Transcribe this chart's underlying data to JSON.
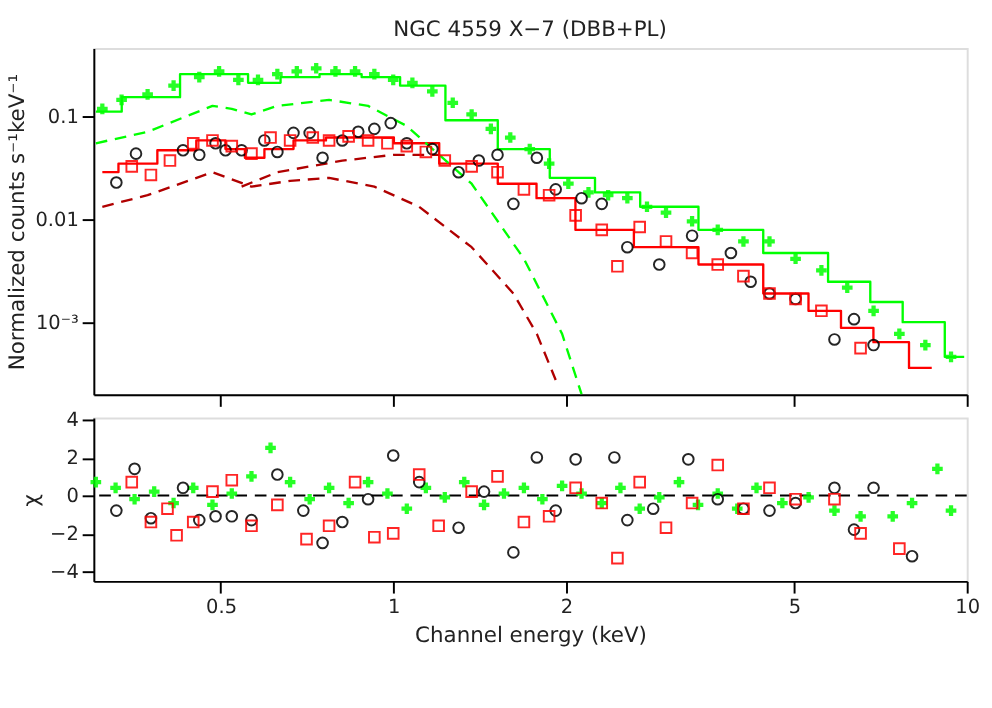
{
  "chart_data": [
    {
      "type": "scatter",
      "title": "NGC 4559 X−7 (DBB+PL)",
      "ylabel": "Normalized counts s⁻¹keV⁻¹",
      "log": "xy",
      "grid": false,
      "tick_labels": "y",
      "xlim": [
        0.3,
        10
      ],
      "xticks": [
        0.5,
        1,
        2,
        5,
        10
      ],
      "ylim": [
        0.0002,
        0.46
      ],
      "yticks": [
        0.1,
        0.01,
        {
          "value": 0.001,
          "label": "10⁻³"
        }
      ],
      "series": [
        {
          "type": "step",
          "color": "#00ff00",
          "x": [
            0.303,
            0.373,
            0.484,
            0.523,
            0.596,
            0.679,
            0.815,
            0.952,
            1.11,
            1.37,
            1.69,
            2.08,
            2.43,
            2.99,
            3.88,
            5.03,
            6.53,
            7.06,
            8.47,
            9.9
          ],
          "values": [
            0.111,
            0.153,
            0.256,
            0.256,
            0.211,
            0.24,
            0.256,
            0.24,
            0.198,
            0.0914,
            0.048,
            0.0252,
            0.0182,
            0.0132,
            0.00787,
            0.0047,
            0.00247,
            0.00157,
            0.001,
            0.00046
          ]
        },
        {
          "type": "step",
          "color": "#ff0000",
          "x": [
            0.311,
            0.354,
            0.425,
            0.484,
            0.537,
            0.566,
            0.628,
            0.715,
            0.815,
            0.952,
            1.056,
            1.37,
            1.69,
            1.87,
            2.31,
            2.99,
            3.88,
            5.03,
            5.58,
            6.53,
            7.24,
            8.69
          ],
          "values": [
            0.0286,
            0.0347,
            0.0467,
            0.0582,
            0.048,
            0.0395,
            0.048,
            0.0582,
            0.0621,
            0.0621,
            0.0546,
            0.0347,
            0.0221,
            0.016,
            0.00787,
            0.00535,
            0.00363,
            0.0019,
            0.00129,
            0.00088,
            0.00064,
            0.00036
          ]
        },
        {
          "type": "line",
          "line_style": "dashed",
          "color": "#00ff00",
          "x": [
            0.303,
            0.373,
            0.484,
            0.523,
            0.566,
            0.628,
            0.773,
            0.904,
            1.056,
            1.37,
            1.69,
            1.97,
            2.13
          ],
          "values": [
            0.0546,
            0.0706,
            0.126,
            0.118,
            0.104,
            0.126,
            0.144,
            0.126,
            0.0803,
            0.0221,
            0.00413,
            0.00077,
            0.0002
          ]
        },
        {
          "type": "line",
          "line_style": "dashed",
          "color": "#b00000",
          "x": [
            0.311,
            0.373,
            0.484,
            0.566,
            0.661,
            0.773,
            0.927,
            1.11,
            1.37,
            1.62,
            1.78,
            1.92
          ],
          "values": [
            0.0132,
            0.0171,
            0.0286,
            0.0207,
            0.0236,
            0.0252,
            0.0207,
            0.0132,
            0.00535,
            0.0019,
            0.00077,
            0.000275
          ]
        },
        {
          "type": "line",
          "line_style": "dashed",
          "color": "#b00000",
          "x": [
            0.544,
            0.628,
            0.815,
            1.0,
            1.2
          ],
          "values": [
            0.0207,
            0.0286,
            0.037,
            0.0422,
            0.0422
          ]
        },
        {
          "type": "scatter",
          "marker": "cross",
          "color": "#00ff00",
          "x": [
            0.311,
            0.336,
            0.373,
            0.414,
            0.459,
            0.497,
            0.537,
            0.581,
            0.628,
            0.679,
            0.734,
            0.793,
            0.858,
            0.927,
            1.0,
            1.08,
            1.17,
            1.27,
            1.37,
            1.48,
            1.6,
            1.73,
            1.87,
            2.02,
            2.19,
            2.37,
            2.56,
            2.77,
            2.99,
            3.32,
            3.68,
            4.08,
            4.53,
            5.03,
            5.58,
            6.19,
            6.88,
            7.63,
            8.47,
            9.39
          ],
          "values": [
            0.118,
            0.144,
            0.163,
            0.198,
            0.24,
            0.273,
            0.225,
            0.225,
            0.256,
            0.273,
            0.292,
            0.273,
            0.273,
            0.256,
            0.225,
            0.211,
            0.174,
            0.135,
            0.104,
            0.0753,
            0.0621,
            0.048,
            0.0347,
            0.0221,
            0.0182,
            0.0171,
            0.016,
            0.0132,
            0.0116,
            0.00955,
            0.00787,
            0.00608,
            0.00608,
            0.00413,
            0.00319,
            0.00217,
            0.00129,
            0.00077,
            0.0006,
            0.00046
          ]
        },
        {
          "type": "scatter",
          "marker": "circle",
          "color": "#000000",
          "x": [
            0.329,
            0.356,
            0.43,
            0.459,
            0.49,
            0.51,
            0.544,
            0.596,
            0.628,
            0.67,
            0.715,
            0.753,
            0.815,
            0.869,
            0.927,
            0.99,
            1.056,
            1.17,
            1.3,
            1.41,
            1.52,
            1.62,
            1.78,
            1.92,
            2.13,
            2.31,
            2.56,
            2.91,
            3.32,
            3.88,
            4.2,
            4.53,
            5.03,
            5.88,
            6.36,
            6.88
          ],
          "values": [
            0.0227,
            0.0433,
            0.0467,
            0.0422,
            0.0546,
            0.0467,
            0.0467,
            0.0582,
            0.045,
            0.0689,
            0.0689,
            0.0395,
            0.0582,
            0.0706,
            0.0753,
            0.0857,
            0.0546,
            0.048,
            0.0286,
            0.0371,
            0.0422,
            0.0141,
            0.0395,
            0.0195,
            0.016,
            0.0141,
            0.00535,
            0.00363,
            0.00692,
            0.0047,
            0.00247,
            0.0019,
            0.00168,
            0.00068,
            0.00107,
            0.0006
          ]
        },
        {
          "type": "scatter",
          "marker": "square",
          "color": "#ff0000",
          "x": [
            0.35,
            0.378,
            0.408,
            0.448,
            0.484,
            0.523,
            0.566,
            0.611,
            0.661,
            0.724,
            0.773,
            0.836,
            0.904,
            0.977,
            1.056,
            1.14,
            1.23,
            1.37,
            1.52,
            1.69,
            1.87,
            2.08,
            2.31,
            2.46,
            2.69,
            2.99,
            3.32,
            3.68,
            4.08,
            4.53,
            5.03,
            5.58,
            6.53
          ],
          "values": [
            0.0326,
            0.0269,
            0.0371,
            0.0546,
            0.0582,
            0.0512,
            0.0433,
            0.0621,
            0.0582,
            0.0621,
            0.0582,
            0.0637,
            0.0582,
            0.0546,
            0.0512,
            0.045,
            0.0371,
            0.0326,
            0.0286,
            0.0195,
            0.0171,
            0.0109,
            0.00787,
            0.00349,
            0.0084,
            0.00608,
            0.0047,
            0.00363,
            0.0028,
            0.0019,
            0.00168,
            0.00129,
            0.00056
          ]
        }
      ]
    },
    {
      "type": "scatter",
      "ylabel": "χ",
      "xlabel": "Channel energy (keV)",
      "log": "x",
      "grid": false,
      "xlim": [
        0.3,
        10
      ],
      "xticks": [
        0.5,
        1,
        2,
        5,
        10
      ],
      "ylim": [
        -4.5,
        4.1
      ],
      "yticks": [
        -4,
        -2,
        0,
        2,
        4
      ],
      "ref_lines": [
        {
          "axis": "y",
          "value": 0,
          "color": "#000000",
          "line_style": "dashed"
        }
      ],
      "series": [
        {
          "marker": "cross",
          "color": "#00ff00",
          "x": [
            0.303,
            0.328,
            0.354,
            0.383,
            0.414,
            0.448,
            0.484,
            0.523,
            0.566,
            0.611,
            0.661,
            0.715,
            0.773,
            0.836,
            0.904,
            0.977,
            1.056,
            1.14,
            1.23,
            1.33,
            1.44,
            1.56,
            1.69,
            1.82,
            1.97,
            2.13,
            2.31,
            2.49,
            2.69,
            2.91,
            3.15,
            3.4,
            3.68,
            3.98,
            4.3,
            4.77,
            5.3,
            5.88,
            6.53,
            7.43,
            8.03,
            8.89,
            9.39
          ],
          "values": [
            0.7,
            0.4,
            -0.2,
            0.2,
            -0.4,
            0.4,
            -0.5,
            0.1,
            1.0,
            2.5,
            0.7,
            -0.2,
            0.4,
            -0.4,
            0.7,
            0.1,
            -0.7,
            0.4,
            -0.1,
            0.7,
            -0.5,
            0.1,
            0.4,
            -0.2,
            0.5,
            0.1,
            -0.4,
            0.4,
            -0.7,
            -0.1,
            0.7,
            -0.5,
            0.1,
            -0.7,
            0.4,
            -0.4,
            -0.1,
            -0.8,
            -1.1,
            -1.1,
            -0.4,
            1.4,
            -0.8
          ]
        },
        {
          "marker": "circle",
          "color": "#000000",
          "x": [
            0.329,
            0.354,
            0.378,
            0.43,
            0.459,
            0.49,
            0.523,
            0.566,
            0.628,
            0.697,
            0.753,
            0.815,
            0.904,
            1.0,
            1.11,
            1.3,
            1.44,
            1.62,
            1.78,
            1.92,
            2.08,
            2.43,
            2.56,
            2.84,
            3.27,
            3.68,
            4.08,
            4.53,
            5.03,
            5.88,
            6.36,
            6.88,
            8.03
          ],
          "values": [
            -0.8,
            1.4,
            -1.2,
            0.4,
            -1.3,
            -1.1,
            -1.1,
            -1.3,
            1.1,
            -0.8,
            -2.5,
            -1.4,
            -0.2,
            2.1,
            0.7,
            -1.7,
            0.2,
            -3.0,
            2.0,
            -0.8,
            1.9,
            2.0,
            -1.3,
            -0.7,
            1.9,
            -0.2,
            -0.7,
            -0.8,
            -0.4,
            0.4,
            -1.8,
            0.4,
            -3.2
          ]
        },
        {
          "marker": "square",
          "color": "#ff0000",
          "x": [
            0.35,
            0.378,
            0.404,
            0.419,
            0.448,
            0.484,
            0.523,
            0.566,
            0.628,
            0.706,
            0.773,
            0.858,
            0.927,
            1.0,
            1.11,
            1.2,
            1.37,
            1.52,
            1.69,
            1.87,
            2.08,
            2.31,
            2.46,
            2.69,
            2.99,
            3.32,
            3.68,
            4.08,
            4.53,
            5.03,
            5.88,
            6.53,
            7.63
          ],
          "values": [
            0.7,
            -1.4,
            -0.7,
            -2.1,
            -1.4,
            0.2,
            0.8,
            -1.6,
            -0.5,
            -2.3,
            -1.6,
            0.7,
            -2.2,
            -2.0,
            1.1,
            -1.6,
            0.2,
            1.0,
            -1.4,
            -1.1,
            0.4,
            -0.4,
            -3.3,
            0.7,
            -1.7,
            -0.4,
            1.6,
            -0.7,
            0.4,
            -0.2,
            -0.2,
            -2.0,
            -2.8
          ]
        }
      ]
    }
  ]
}
